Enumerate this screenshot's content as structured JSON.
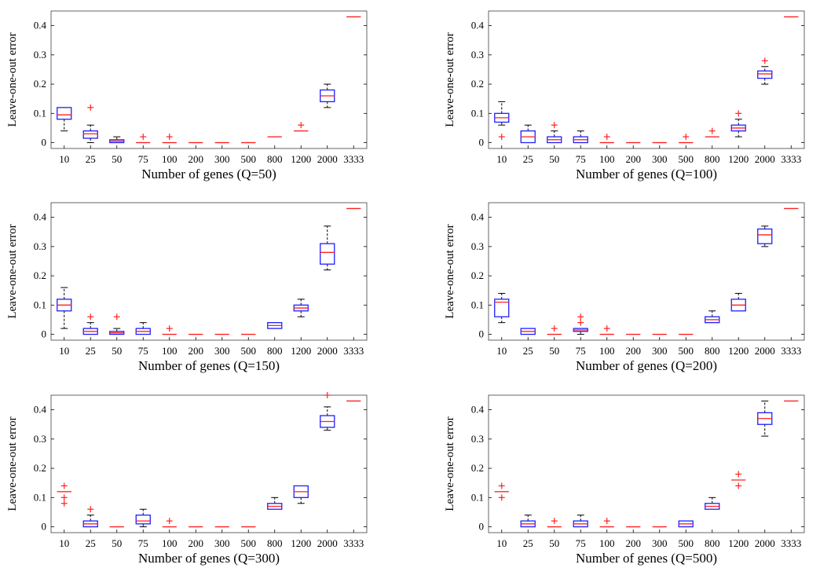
{
  "chart_data": [
    {
      "type": "box",
      "xlabel": "Number of genes (Q=50)",
      "ylabel": "Leave-one-out error",
      "categories": [
        "10",
        "25",
        "50",
        "75",
        "100",
        "200",
        "300",
        "500",
        "800",
        "1200",
        "2000",
        "3333"
      ],
      "yticks": [
        "0",
        "0.1",
        "0.2",
        "0.3",
        "0.4"
      ],
      "ylim": [
        -0.02,
        0.45
      ],
      "boxes": [
        {
          "q1": 0.08,
          "median": 0.095,
          "q3": 0.12,
          "wlo": 0.04,
          "whi": 0.12,
          "outliers": []
        },
        {
          "q1": 0.015,
          "median": 0.03,
          "q3": 0.04,
          "wlo": 0.0,
          "whi": 0.06,
          "outliers": [
            0.12
          ]
        },
        {
          "q1": 0.0,
          "median": 0.005,
          "q3": 0.01,
          "wlo": 0.0,
          "whi": 0.02,
          "outliers": []
        },
        {
          "q1": 0.0,
          "median": 0.0,
          "q3": 0.0,
          "wlo": 0.0,
          "whi": 0.0,
          "outliers": [
            0.02
          ]
        },
        {
          "q1": 0.0,
          "median": 0.0,
          "q3": 0.0,
          "wlo": 0.0,
          "whi": 0.0,
          "outliers": [
            0.02
          ]
        },
        {
          "q1": 0.0,
          "median": 0.0,
          "q3": 0.0,
          "wlo": 0.0,
          "whi": 0.0,
          "outliers": []
        },
        {
          "q1": 0.0,
          "median": 0.0,
          "q3": 0.0,
          "wlo": 0.0,
          "whi": 0.0,
          "outliers": []
        },
        {
          "q1": 0.0,
          "median": 0.0,
          "q3": 0.0,
          "wlo": 0.0,
          "whi": 0.0,
          "outliers": []
        },
        {
          "q1": 0.02,
          "median": 0.02,
          "q3": 0.02,
          "wlo": 0.02,
          "whi": 0.02,
          "outliers": []
        },
        {
          "q1": 0.04,
          "median": 0.04,
          "q3": 0.04,
          "wlo": 0.04,
          "whi": 0.04,
          "outliers": [
            0.06
          ]
        },
        {
          "q1": 0.14,
          "median": 0.16,
          "q3": 0.18,
          "wlo": 0.12,
          "whi": 0.2,
          "outliers": []
        },
        {
          "q1": 0.43,
          "median": 0.43,
          "q3": 0.43,
          "wlo": 0.43,
          "whi": 0.43,
          "outliers": []
        }
      ]
    },
    {
      "type": "box",
      "xlabel": "Number of genes (Q=100)",
      "ylabel": "Leave-one-out error",
      "categories": [
        "10",
        "25",
        "50",
        "75",
        "100",
        "200",
        "300",
        "500",
        "800",
        "1200",
        "2000",
        "3333"
      ],
      "yticks": [
        "0",
        "0.1",
        "0.2",
        "0.3",
        "0.4"
      ],
      "ylim": [
        -0.02,
        0.45
      ],
      "boxes": [
        {
          "q1": 0.07,
          "median": 0.085,
          "q3": 0.1,
          "wlo": 0.06,
          "whi": 0.14,
          "outliers": [
            0.02
          ]
        },
        {
          "q1": 0.0,
          "median": 0.02,
          "q3": 0.04,
          "wlo": 0.0,
          "whi": 0.06,
          "outliers": []
        },
        {
          "q1": 0.0,
          "median": 0.01,
          "q3": 0.02,
          "wlo": 0.0,
          "whi": 0.04,
          "outliers": [
            0.06
          ]
        },
        {
          "q1": 0.0,
          "median": 0.01,
          "q3": 0.02,
          "wlo": 0.0,
          "whi": 0.04,
          "outliers": []
        },
        {
          "q1": 0.0,
          "median": 0.0,
          "q3": 0.0,
          "wlo": 0.0,
          "whi": 0.0,
          "outliers": [
            0.02
          ]
        },
        {
          "q1": 0.0,
          "median": 0.0,
          "q3": 0.0,
          "wlo": 0.0,
          "whi": 0.0,
          "outliers": []
        },
        {
          "q1": 0.0,
          "median": 0.0,
          "q3": 0.0,
          "wlo": 0.0,
          "whi": 0.0,
          "outliers": []
        },
        {
          "q1": 0.0,
          "median": 0.0,
          "q3": 0.0,
          "wlo": 0.0,
          "whi": 0.0,
          "outliers": [
            0.02
          ]
        },
        {
          "q1": 0.02,
          "median": 0.02,
          "q3": 0.02,
          "wlo": 0.02,
          "whi": 0.02,
          "outliers": [
            0.04
          ]
        },
        {
          "q1": 0.04,
          "median": 0.05,
          "q3": 0.06,
          "wlo": 0.02,
          "whi": 0.08,
          "outliers": [
            0.1
          ]
        },
        {
          "q1": 0.22,
          "median": 0.235,
          "q3": 0.245,
          "wlo": 0.2,
          "whi": 0.26,
          "outliers": [
            0.28
          ]
        },
        {
          "q1": 0.43,
          "median": 0.43,
          "q3": 0.43,
          "wlo": 0.43,
          "whi": 0.43,
          "outliers": []
        }
      ]
    },
    {
      "type": "box",
      "xlabel": "Number of genes (Q=150)",
      "ylabel": "Leave-one-out error",
      "categories": [
        "10",
        "25",
        "50",
        "75",
        "100",
        "200",
        "300",
        "500",
        "800",
        "1200",
        "2000",
        "3333"
      ],
      "yticks": [
        "0",
        "0.1",
        "0.2",
        "0.3",
        "0.4"
      ],
      "ylim": [
        -0.02,
        0.45
      ],
      "boxes": [
        {
          "q1": 0.08,
          "median": 0.1,
          "q3": 0.12,
          "wlo": 0.02,
          "whi": 0.16,
          "outliers": []
        },
        {
          "q1": 0.0,
          "median": 0.01,
          "q3": 0.02,
          "wlo": 0.0,
          "whi": 0.04,
          "outliers": [
            0.06
          ]
        },
        {
          "q1": 0.0,
          "median": 0.005,
          "q3": 0.01,
          "wlo": 0.0,
          "whi": 0.02,
          "outliers": [
            0.06
          ]
        },
        {
          "q1": 0.0,
          "median": 0.01,
          "q3": 0.02,
          "wlo": 0.0,
          "whi": 0.04,
          "outliers": []
        },
        {
          "q1": 0.0,
          "median": 0.0,
          "q3": 0.0,
          "wlo": 0.0,
          "whi": 0.0,
          "outliers": [
            0.02
          ]
        },
        {
          "q1": 0.0,
          "median": 0.0,
          "q3": 0.0,
          "wlo": 0.0,
          "whi": 0.0,
          "outliers": []
        },
        {
          "q1": 0.0,
          "median": 0.0,
          "q3": 0.0,
          "wlo": 0.0,
          "whi": 0.0,
          "outliers": []
        },
        {
          "q1": 0.0,
          "median": 0.0,
          "q3": 0.0,
          "wlo": 0.0,
          "whi": 0.0,
          "outliers": []
        },
        {
          "q1": 0.02,
          "median": 0.03,
          "q3": 0.04,
          "wlo": 0.02,
          "whi": 0.04,
          "outliers": []
        },
        {
          "q1": 0.08,
          "median": 0.09,
          "q3": 0.1,
          "wlo": 0.06,
          "whi": 0.12,
          "outliers": []
        },
        {
          "q1": 0.24,
          "median": 0.28,
          "q3": 0.31,
          "wlo": 0.22,
          "whi": 0.37,
          "outliers": []
        },
        {
          "q1": 0.43,
          "median": 0.43,
          "q3": 0.43,
          "wlo": 0.43,
          "whi": 0.43,
          "outliers": []
        }
      ]
    },
    {
      "type": "box",
      "xlabel": "Number of genes (Q=200)",
      "ylabel": "Leave-one-out error",
      "categories": [
        "10",
        "25",
        "50",
        "75",
        "100",
        "200",
        "300",
        "500",
        "800",
        "1200",
        "2000",
        "3333"
      ],
      "yticks": [
        "0",
        "0.1",
        "0.2",
        "0.3",
        "0.4"
      ],
      "ylim": [
        -0.02,
        0.45
      ],
      "boxes": [
        {
          "q1": 0.06,
          "median": 0.11,
          "q3": 0.12,
          "wlo": 0.04,
          "whi": 0.14,
          "outliers": []
        },
        {
          "q1": 0.0,
          "median": 0.01,
          "q3": 0.02,
          "wlo": 0.0,
          "whi": 0.02,
          "outliers": []
        },
        {
          "q1": 0.0,
          "median": 0.0,
          "q3": 0.0,
          "wlo": 0.0,
          "whi": 0.0,
          "outliers": [
            0.02
          ]
        },
        {
          "q1": 0.01,
          "median": 0.015,
          "q3": 0.02,
          "wlo": 0.0,
          "whi": 0.02,
          "outliers": [
            0.04,
            0.06
          ]
        },
        {
          "q1": 0.0,
          "median": 0.0,
          "q3": 0.0,
          "wlo": 0.0,
          "whi": 0.0,
          "outliers": [
            0.02
          ]
        },
        {
          "q1": 0.0,
          "median": 0.0,
          "q3": 0.0,
          "wlo": 0.0,
          "whi": 0.0,
          "outliers": []
        },
        {
          "q1": 0.0,
          "median": 0.0,
          "q3": 0.0,
          "wlo": 0.0,
          "whi": 0.0,
          "outliers": []
        },
        {
          "q1": 0.0,
          "median": 0.0,
          "q3": 0.0,
          "wlo": 0.0,
          "whi": 0.0,
          "outliers": []
        },
        {
          "q1": 0.04,
          "median": 0.05,
          "q3": 0.06,
          "wlo": 0.04,
          "whi": 0.08,
          "outliers": []
        },
        {
          "q1": 0.08,
          "median": 0.1,
          "q3": 0.12,
          "wlo": 0.08,
          "whi": 0.14,
          "outliers": []
        },
        {
          "q1": 0.31,
          "median": 0.34,
          "q3": 0.36,
          "wlo": 0.3,
          "whi": 0.37,
          "outliers": []
        },
        {
          "q1": 0.43,
          "median": 0.43,
          "q3": 0.43,
          "wlo": 0.43,
          "whi": 0.43,
          "outliers": []
        }
      ]
    },
    {
      "type": "box",
      "xlabel": "Number of genes (Q=300)",
      "ylabel": "Leave-one-out error",
      "categories": [
        "10",
        "25",
        "50",
        "75",
        "100",
        "200",
        "300",
        "500",
        "800",
        "1200",
        "2000",
        "3333"
      ],
      "yticks": [
        "0",
        "0.1",
        "0.2",
        "0.3",
        "0.4"
      ],
      "ylim": [
        -0.02,
        0.45
      ],
      "boxes": [
        {
          "q1": 0.12,
          "median": 0.12,
          "q3": 0.12,
          "wlo": 0.12,
          "whi": 0.12,
          "outliers": [
            0.08,
            0.1,
            0.14
          ]
        },
        {
          "q1": 0.0,
          "median": 0.01,
          "q3": 0.02,
          "wlo": 0.0,
          "whi": 0.04,
          "outliers": [
            0.06
          ]
        },
        {
          "q1": 0.0,
          "median": 0.0,
          "q3": 0.0,
          "wlo": 0.0,
          "whi": 0.0,
          "outliers": []
        },
        {
          "q1": 0.01,
          "median": 0.02,
          "q3": 0.04,
          "wlo": 0.0,
          "whi": 0.06,
          "outliers": []
        },
        {
          "q1": 0.0,
          "median": 0.0,
          "q3": 0.0,
          "wlo": 0.0,
          "whi": 0.0,
          "outliers": [
            0.02
          ]
        },
        {
          "q1": 0.0,
          "median": 0.0,
          "q3": 0.0,
          "wlo": 0.0,
          "whi": 0.0,
          "outliers": []
        },
        {
          "q1": 0.0,
          "median": 0.0,
          "q3": 0.0,
          "wlo": 0.0,
          "whi": 0.0,
          "outliers": []
        },
        {
          "q1": 0.0,
          "median": 0.0,
          "q3": 0.0,
          "wlo": 0.0,
          "whi": 0.0,
          "outliers": []
        },
        {
          "q1": 0.06,
          "median": 0.07,
          "q3": 0.08,
          "wlo": 0.06,
          "whi": 0.1,
          "outliers": []
        },
        {
          "q1": 0.1,
          "median": 0.12,
          "q3": 0.14,
          "wlo": 0.08,
          "whi": 0.14,
          "outliers": []
        },
        {
          "q1": 0.34,
          "median": 0.36,
          "q3": 0.38,
          "wlo": 0.33,
          "whi": 0.41,
          "outliers": [
            0.45
          ]
        },
        {
          "q1": 0.43,
          "median": 0.43,
          "q3": 0.43,
          "wlo": 0.43,
          "whi": 0.43,
          "outliers": []
        }
      ]
    },
    {
      "type": "box",
      "xlabel": "Number of genes (Q=500)",
      "ylabel": "Leave-one-out error",
      "categories": [
        "10",
        "25",
        "50",
        "75",
        "100",
        "200",
        "300",
        "500",
        "800",
        "1200",
        "2000",
        "3333"
      ],
      "yticks": [
        "0",
        "0.1",
        "0.2",
        "0.3",
        "0.4"
      ],
      "ylim": [
        -0.02,
        0.45
      ],
      "boxes": [
        {
          "q1": 0.12,
          "median": 0.12,
          "q3": 0.12,
          "wlo": 0.12,
          "whi": 0.12,
          "outliers": [
            0.1,
            0.14
          ]
        },
        {
          "q1": 0.0,
          "median": 0.01,
          "q3": 0.02,
          "wlo": 0.0,
          "whi": 0.04,
          "outliers": []
        },
        {
          "q1": 0.0,
          "median": 0.0,
          "q3": 0.0,
          "wlo": 0.0,
          "whi": 0.0,
          "outliers": [
            0.02
          ]
        },
        {
          "q1": 0.0,
          "median": 0.01,
          "q3": 0.02,
          "wlo": 0.0,
          "whi": 0.04,
          "outliers": []
        },
        {
          "q1": 0.0,
          "median": 0.0,
          "q3": 0.0,
          "wlo": 0.0,
          "whi": 0.0,
          "outliers": [
            0.02
          ]
        },
        {
          "q1": 0.0,
          "median": 0.0,
          "q3": 0.0,
          "wlo": 0.0,
          "whi": 0.0,
          "outliers": []
        },
        {
          "q1": 0.0,
          "median": 0.0,
          "q3": 0.0,
          "wlo": 0.0,
          "whi": 0.0,
          "outliers": []
        },
        {
          "q1": 0.0,
          "median": 0.01,
          "q3": 0.02,
          "wlo": 0.0,
          "whi": 0.02,
          "outliers": []
        },
        {
          "q1": 0.06,
          "median": 0.07,
          "q3": 0.08,
          "wlo": 0.06,
          "whi": 0.1,
          "outliers": []
        },
        {
          "q1": 0.16,
          "median": 0.16,
          "q3": 0.16,
          "wlo": 0.16,
          "whi": 0.16,
          "outliers": [
            0.14,
            0.18
          ]
        },
        {
          "q1": 0.35,
          "median": 0.37,
          "q3": 0.39,
          "wlo": 0.31,
          "whi": 0.43,
          "outliers": []
        },
        {
          "q1": 0.43,
          "median": 0.43,
          "q3": 0.43,
          "wlo": 0.43,
          "whi": 0.43,
          "outliers": []
        }
      ]
    }
  ],
  "colors": {
    "box": "#1f1fff",
    "median": "#ff2020",
    "whisker": "#000000",
    "outlier": "#ff2020",
    "axis": "#000000"
  }
}
